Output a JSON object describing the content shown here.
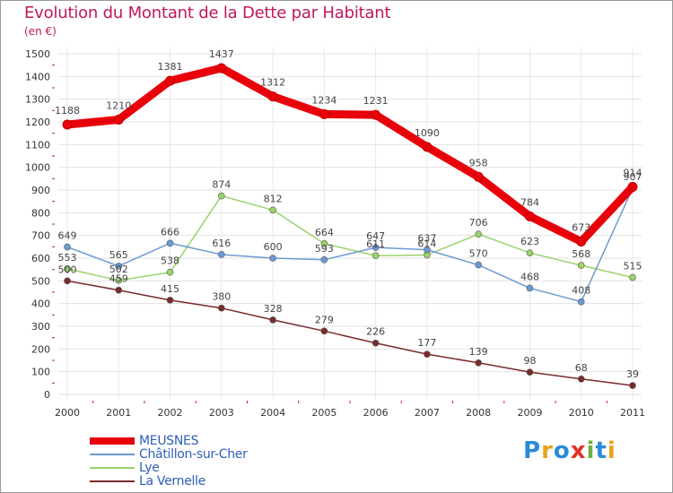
{
  "title": "Evolution du Montant de la Dette par Habitant",
  "subtitle": "(en €)",
  "logo": {
    "text": "Proxiti",
    "colors": [
      "#2a8bd8",
      "#e8a21c",
      "#2a8bd8",
      "#e3312a",
      "#6ab23f",
      "#2a8bd8",
      "#e8a21c"
    ]
  },
  "chart_data": {
    "type": "line",
    "title": "Evolution du Montant de la Dette par Habitant",
    "ylabel": "(en €)",
    "xlabel": "",
    "x": [
      "2000",
      "2001",
      "2002",
      "2003",
      "2004",
      "2005",
      "2006",
      "2007",
      "2008",
      "2009",
      "2010",
      "2011"
    ],
    "ylim": [
      0,
      1500
    ],
    "yticks": [
      0,
      100,
      200,
      300,
      400,
      500,
      600,
      700,
      800,
      900,
      1000,
      1100,
      1200,
      1300,
      1400,
      1500
    ],
    "grid": true,
    "legend_position": "bottom-left",
    "series": [
      {
        "name": "MEUSNES",
        "color": "#e8000b",
        "width": 9,
        "marker_r": 5,
        "values": [
          1188,
          1210,
          1381,
          1437,
          1312,
          1234,
          1231,
          1090,
          958,
          784,
          673,
          914
        ],
        "labels": [
          "1188",
          "1210",
          "1381",
          "1437",
          "1312",
          "1234",
          "1231",
          "1090",
          "958",
          "784",
          "673",
          "914"
        ]
      },
      {
        "name": "Châtillon-sur-Cher",
        "color": "#6b9bd1",
        "width": 1.5,
        "marker_r": 3.5,
        "values": [
          649,
          565,
          666,
          616,
          600,
          593,
          647,
          637,
          570,
          468,
          408,
          907
        ],
        "labels": [
          "649",
          "565",
          "666",
          "616",
          "600",
          "593",
          "647",
          "637",
          "570",
          "468",
          "408",
          "907"
        ]
      },
      {
        "name": "Lye",
        "color": "#9ad36b",
        "width": 1.5,
        "marker_r": 3.5,
        "values": [
          553,
          502,
          538,
          874,
          812,
          664,
          611,
          614,
          706,
          623,
          568,
          515
        ],
        "labels": [
          "553",
          "502",
          "538",
          "874",
          "812",
          "664",
          "611",
          "614",
          "706",
          "623",
          "568",
          "515"
        ]
      },
      {
        "name": "La Vernelle",
        "color": "#7a2b2b",
        "width": 1.5,
        "marker_r": 3.5,
        "values": [
          500,
          459,
          415,
          380,
          328,
          279,
          226,
          177,
          139,
          98,
          68,
          39
        ],
        "labels": [
          "500",
          "459",
          "415",
          "380",
          "328",
          "279",
          "226",
          "177",
          "139",
          "98",
          "68",
          "39"
        ]
      }
    ]
  }
}
